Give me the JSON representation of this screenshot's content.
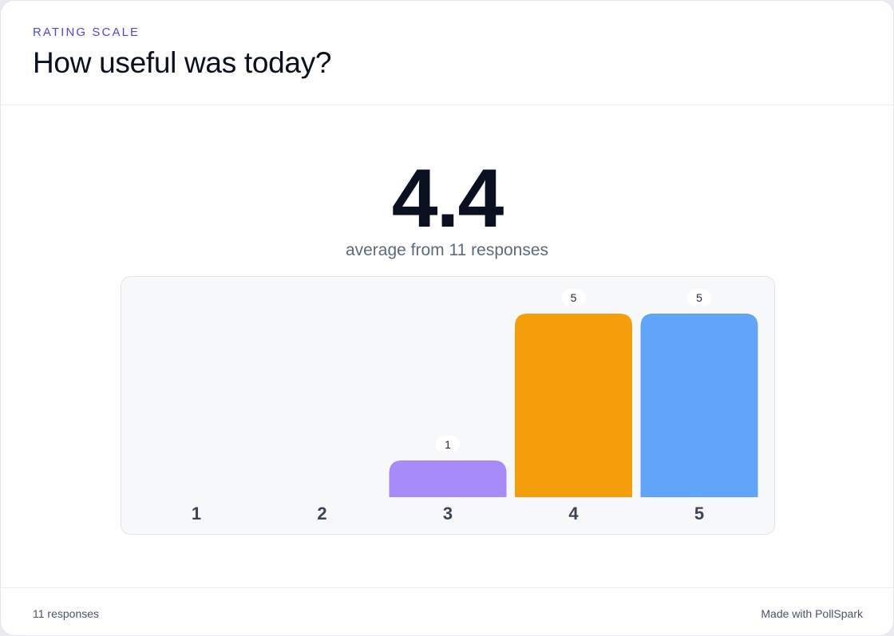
{
  "header": {
    "eyebrow": "RATING SCALE",
    "title": "How useful was today?"
  },
  "summary": {
    "average": "4.4",
    "caption": "average from 11 responses"
  },
  "chart_data": {
    "type": "bar",
    "categories": [
      "1",
      "2",
      "3",
      "4",
      "5"
    ],
    "values": [
      0,
      0,
      1,
      5,
      5
    ],
    "colors": [
      "#cbd5e1",
      "#cbd5e1",
      "#a78bfa",
      "#f59e0b",
      "#60a5fa"
    ],
    "value_labels": [
      "",
      "",
      "1",
      "5",
      "5"
    ],
    "ylim": [
      0,
      5
    ],
    "grid": false,
    "title": "",
    "xlabel": "",
    "ylabel": ""
  },
  "footer": {
    "count": "11 responses",
    "credit": "Made with PollSpark"
  }
}
